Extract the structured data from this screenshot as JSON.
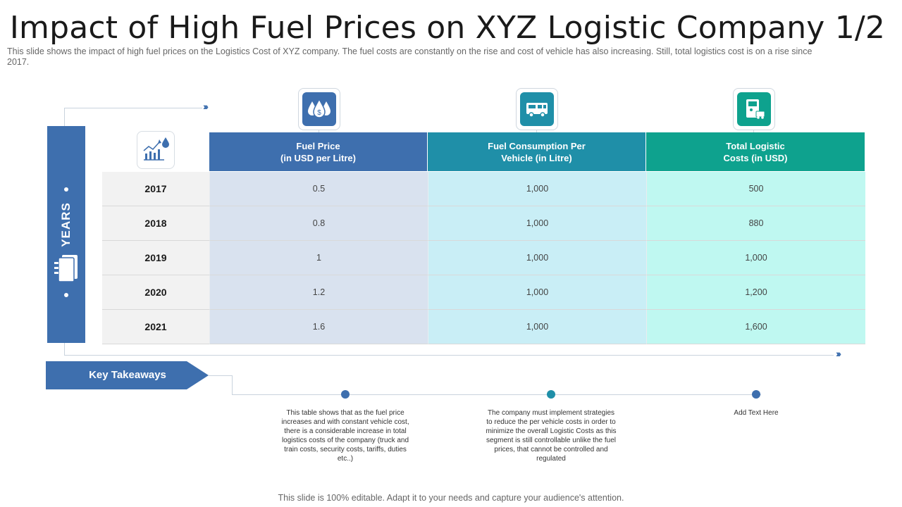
{
  "title": "Impact of High Fuel Prices on XYZ Logistic Company 1/2",
  "subtitle": "This slide shows the impact of high fuel prices on the Logistics Cost of XYZ  company. The fuel costs are constantly on the rise and cost of vehicle has also increasing. Still, total logistics cost is on a rise since 2017.",
  "years_label": "YEARS",
  "chevrons": "›››",
  "table": {
    "headers": [
      {
        "line1": "Fuel Price",
        "line2": "(in USD per Litre)"
      },
      {
        "line1": "Fuel Consumption Per",
        "line2": "Vehicle (in Litre)"
      },
      {
        "line1": "Total Logistic",
        "line2": "Costs (in USD)"
      }
    ],
    "rows": [
      {
        "year": "2017",
        "values": [
          "0.5",
          "1,000",
          "500"
        ]
      },
      {
        "year": "2018",
        "values": [
          "0.8",
          "1,000",
          "880"
        ]
      },
      {
        "year": "2019",
        "values": [
          "1",
          "1,000",
          "1,000"
        ]
      },
      {
        "year": "2020",
        "values": [
          "1.2",
          "1,000",
          "1,200"
        ]
      },
      {
        "year": "2021",
        "values": [
          "1.6",
          "1,000",
          "1,600"
        ]
      }
    ]
  },
  "key_takeaways": {
    "label": "Key Takeaways",
    "items": [
      "This table shows that as the fuel price increases and with constant vehicle cost, there is a considerable increase in total logistics costs of the company (truck and train costs, security costs, tariffs, duties etc..)",
      "The company must implement strategies to reduce the per vehicle costs in order to minimize  the overall Logistic Costs as this segment is still controllable unlike the fuel prices, that cannot be controlled and regulated",
      "Add Text Here"
    ]
  },
  "footer": "This slide is 100% editable. Adapt it to your needs and capture your audience's attention.",
  "colors": {
    "blue": "#3e6fae",
    "teal_blue": "#1f8fa8",
    "teal_green": "#0ea28e",
    "cell_blue": "#d9e2ef",
    "cell_cyan": "#c9eef6",
    "cell_aqua": "#bff8f1"
  },
  "icons": [
    "trend-chart-icon",
    "fuel-price-icon",
    "truck-icon",
    "fuel-pump-icon",
    "calendar-icon"
  ]
}
